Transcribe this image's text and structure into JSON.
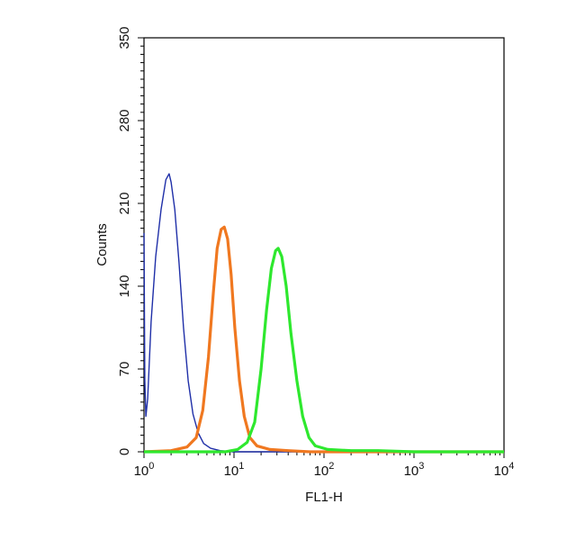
{
  "chart_data": {
    "type": "line",
    "xlabel": "FL1-H",
    "ylabel": "Counts",
    "xscale": "log",
    "xlim": [
      1,
      10000
    ],
    "ylim": [
      0,
      350
    ],
    "grid": false,
    "x_ticks": [
      {
        "base": "10",
        "exp": "0",
        "value": 1
      },
      {
        "base": "10",
        "exp": "1",
        "value": 10
      },
      {
        "base": "10",
        "exp": "2",
        "value": 100
      },
      {
        "base": "10",
        "exp": "3",
        "value": 1000
      },
      {
        "base": "10",
        "exp": "4",
        "value": 10000
      }
    ],
    "y_ticks": [
      "0",
      "70",
      "140",
      "210",
      "280",
      "350"
    ],
    "series": [
      {
        "color": "#1f2fa8",
        "points": [
          [
            1.0,
            185
          ],
          [
            1.02,
            60
          ],
          [
            1.05,
            30
          ],
          [
            1.1,
            45
          ],
          [
            1.2,
            110
          ],
          [
            1.35,
            165
          ],
          [
            1.55,
            205
          ],
          [
            1.75,
            230
          ],
          [
            1.9,
            235
          ],
          [
            2.0,
            228
          ],
          [
            2.2,
            205
          ],
          [
            2.45,
            160
          ],
          [
            2.75,
            105
          ],
          [
            3.1,
            60
          ],
          [
            3.5,
            32
          ],
          [
            4.0,
            16
          ],
          [
            4.6,
            7
          ],
          [
            5.5,
            3
          ],
          [
            7,
            1
          ],
          [
            10,
            0
          ],
          [
            20,
            0
          ],
          [
            10000,
            0
          ]
        ]
      },
      {
        "color": "#f07820",
        "points": [
          [
            1,
            0
          ],
          [
            2,
            1
          ],
          [
            3,
            4
          ],
          [
            3.8,
            12
          ],
          [
            4.5,
            35
          ],
          [
            5.2,
            80
          ],
          [
            5.9,
            135
          ],
          [
            6.5,
            172
          ],
          [
            7.2,
            188
          ],
          [
            7.8,
            190
          ],
          [
            8.5,
            180
          ],
          [
            9.3,
            150
          ],
          [
            10.2,
            105
          ],
          [
            11.5,
            60
          ],
          [
            13,
            30
          ],
          [
            15,
            12
          ],
          [
            18,
            5
          ],
          [
            25,
            2
          ],
          [
            40,
            1
          ],
          [
            70,
            0
          ],
          [
            10000,
            0
          ]
        ]
      },
      {
        "color": "#2ee82e",
        "points": [
          [
            1,
            0
          ],
          [
            8,
            0
          ],
          [
            11,
            2
          ],
          [
            14,
            8
          ],
          [
            17,
            25
          ],
          [
            20,
            70
          ],
          [
            23,
            120
          ],
          [
            26,
            155
          ],
          [
            29,
            170
          ],
          [
            31,
            172
          ],
          [
            34,
            165
          ],
          [
            38,
            140
          ],
          [
            43,
            100
          ],
          [
            50,
            60
          ],
          [
            58,
            30
          ],
          [
            68,
            12
          ],
          [
            80,
            5
          ],
          [
            110,
            2
          ],
          [
            200,
            1
          ],
          [
            400,
            1
          ],
          [
            1000,
            0
          ],
          [
            10000,
            0
          ]
        ]
      }
    ]
  }
}
